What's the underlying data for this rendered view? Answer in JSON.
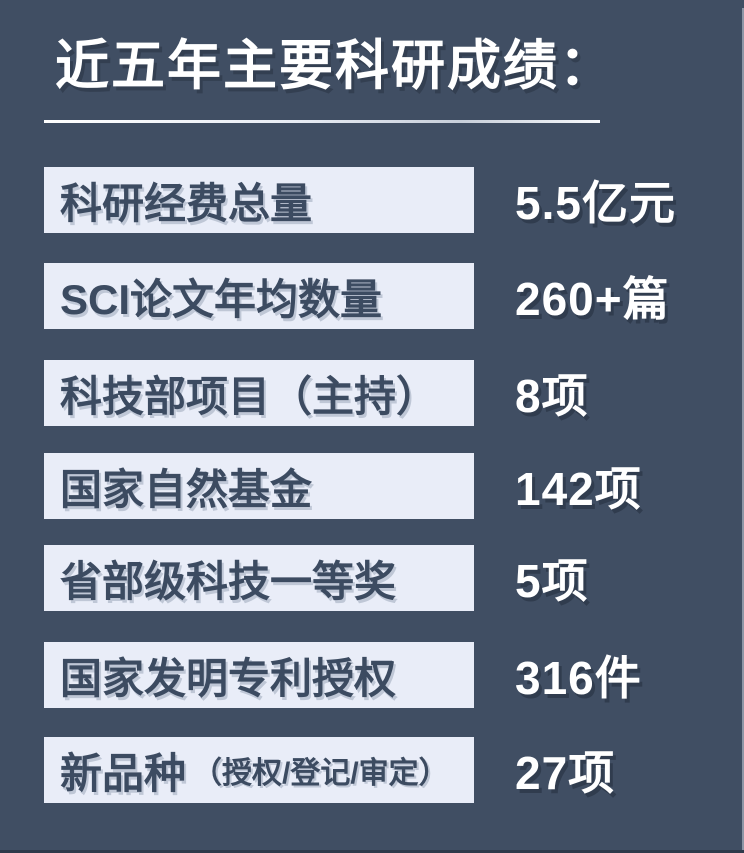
{
  "page": {
    "background_color": "#404E63",
    "label_box_color": "#E9EDF8",
    "label_text_color": "#3C4B61",
    "value_text_color": "#FFFFFF"
  },
  "header": {
    "title": "近五年主要科研成绩："
  },
  "stats": [
    {
      "label": "科研经费总量",
      "note": "",
      "value": "5.5亿元"
    },
    {
      "label": "SCI论文年均数量",
      "note": "",
      "value": "260+篇"
    },
    {
      "label": "科技部项目（主持）",
      "note": "",
      "value": "8项"
    },
    {
      "label": "国家自然基金",
      "note": "",
      "value": "142项"
    },
    {
      "label": "省部级科技一等奖",
      "note": "",
      "value": "5项"
    },
    {
      "label": "国家发明专利授权",
      "note": "",
      "value": "316件"
    },
    {
      "label": "新品种",
      "note": "（授权/登记/审定）",
      "value": "27项"
    }
  ]
}
